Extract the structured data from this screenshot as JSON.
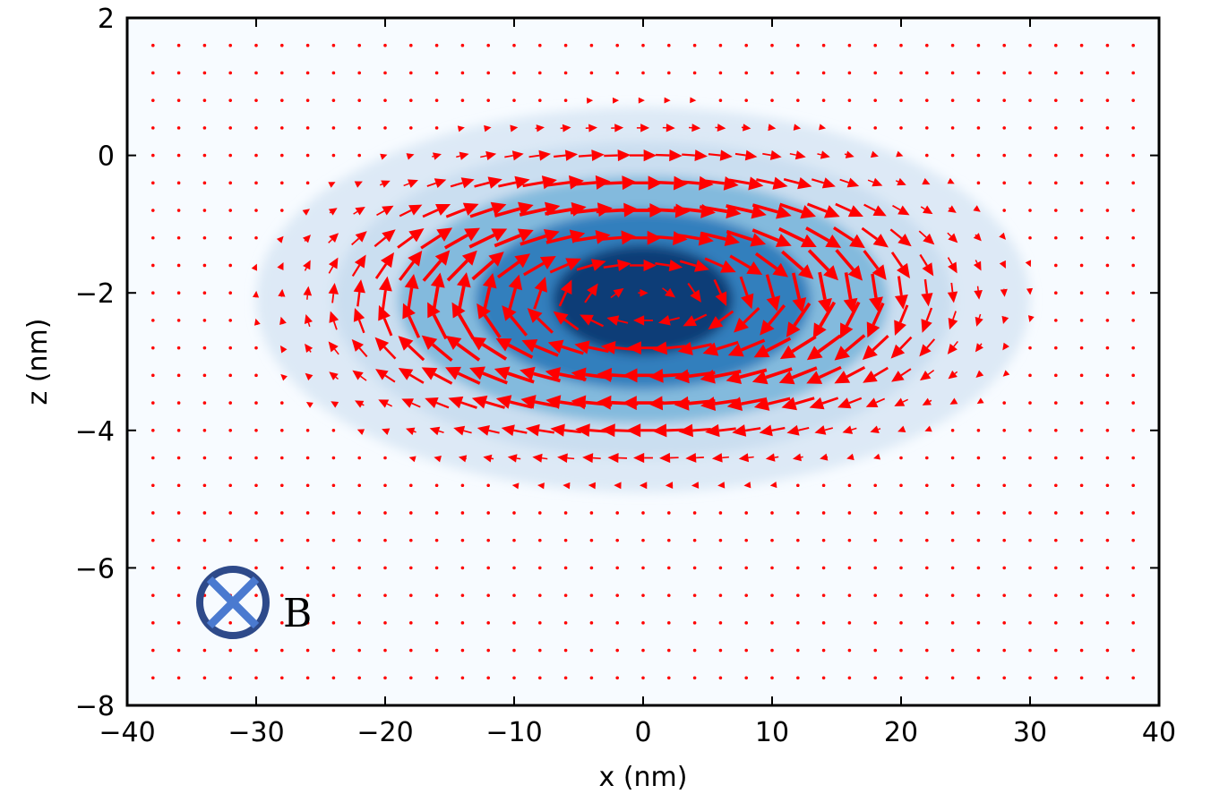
{
  "chart_data": {
    "type": "quiver",
    "title": "",
    "xlabel": "x (nm)",
    "ylabel": "z (nm)",
    "xlim": [
      -40,
      40
    ],
    "ylim": [
      -8,
      2
    ],
    "xticks": [
      -40,
      -30,
      -20,
      -10,
      0,
      10,
      20,
      30,
      40
    ],
    "yticks": [
      -8,
      -6,
      -4,
      -2,
      0,
      2
    ],
    "xtick_labels": [
      "−40",
      "−30",
      "−20",
      "−10",
      "0",
      "10",
      "20",
      "30",
      "40"
    ],
    "ytick_labels": [
      "−8",
      "−6",
      "−4",
      "−2",
      "0",
      "2"
    ],
    "grid": false,
    "background_field": {
      "description": "density map, peak near (0, -2)",
      "center": [
        0,
        -2.1
      ],
      "colormap": [
        "#f7fbff",
        "#c6dbef",
        "#6baed6",
        "#2171b5",
        "#08306b"
      ]
    },
    "vector_field": {
      "color": "#ff0000",
      "grid_x_start": -38,
      "grid_x_step": 2,
      "grid_x_count": 39,
      "grid_z_start": 1.6,
      "grid_z_step": -0.4,
      "grid_z_count": 24,
      "vortex_center": [
        0,
        -2.1
      ],
      "circulation": "clockwise (rightward on top, leftward on bottom)"
    },
    "annotation": {
      "symbol": "⊗",
      "symbol_color": "#2e4a8a",
      "cross_color": "#4a7ad0",
      "label": "B",
      "position": [
        -32,
        -6.5
      ]
    }
  }
}
